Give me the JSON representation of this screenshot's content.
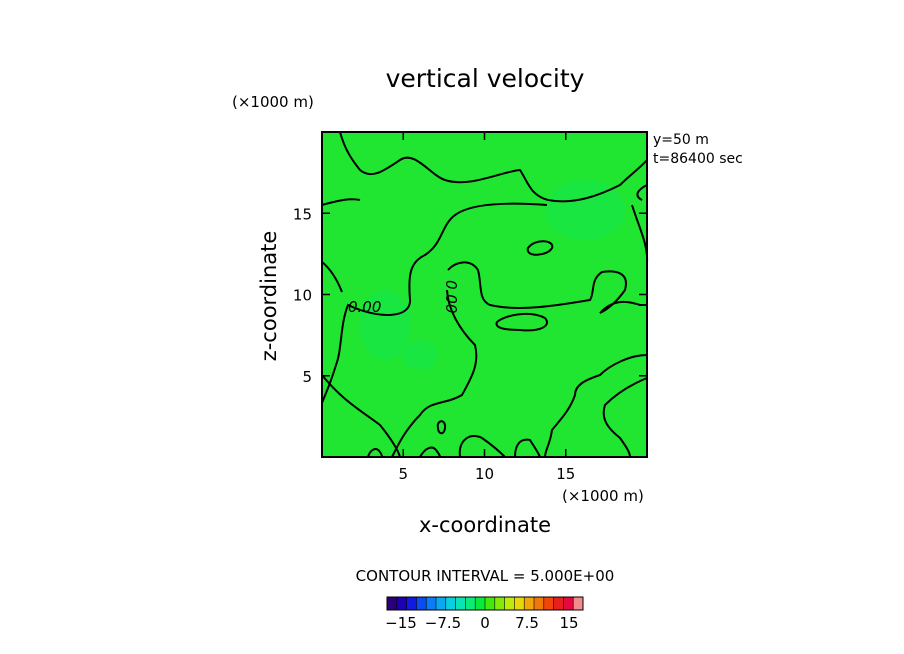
{
  "chart_data": {
    "type": "heatmap",
    "title": "vertical velocity",
    "xlabel": "x-coordinate",
    "ylabel": "z-coordinate",
    "x_unit": "(×1000 m)",
    "y_unit": "(×1000 m)",
    "xlim": [
      0,
      20
    ],
    "ylim": [
      0,
      20
    ],
    "x_ticks": [
      5,
      10,
      15
    ],
    "y_ticks": [
      5,
      10,
      15
    ],
    "info": [
      "y=50 m",
      "t=86400 sec"
    ],
    "contour_interval_text": "CONTOUR INTERVAL = 5.000E+00",
    "contour_levels": [
      0
    ],
    "contour_label": "0.00",
    "field_value_approx": 0,
    "colorbar": {
      "range": [
        -17.5,
        17.5
      ],
      "colors": [
        "#2a007a",
        "#1c00b4",
        "#0f1be0",
        "#0a4cf0",
        "#0a7cf5",
        "#0aa8f0",
        "#0acfe0",
        "#0ae4b4",
        "#0aec78",
        "#0aea3c",
        "#46ea0a",
        "#84ea0a",
        "#c0ea0a",
        "#e8d80a",
        "#f0a60a",
        "#f0780a",
        "#f0460a",
        "#e6201e",
        "#e60a3c",
        "#f08c8c"
      ],
      "tick_labels": [
        "−15",
        "−7.5",
        "0",
        "7.5",
        "15"
      ],
      "tick_values": [
        -15,
        -7.5,
        0,
        7.5,
        15
      ]
    },
    "colors": {
      "field": "#20e632",
      "field_dark": "#14e650"
    },
    "grid": false,
    "legend": "none"
  }
}
